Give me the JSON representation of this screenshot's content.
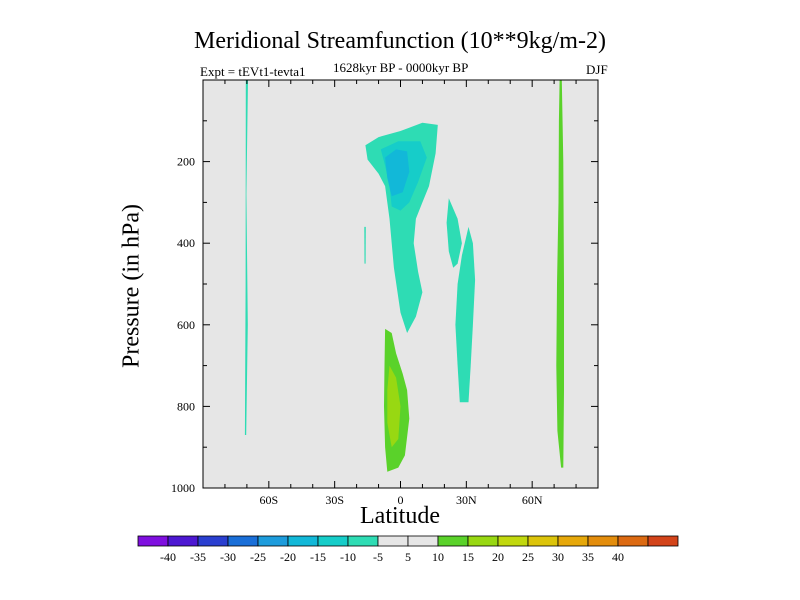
{
  "chart_data": {
    "type": "heatmap",
    "title": "Meridional Streamfunction (10**9kg/m-2)",
    "left_subtitle": "Expt = tEVt1-tevta1",
    "center_subtitle": "1628kyr BP - 0000kyr BP",
    "right_subtitle": "DJF",
    "xlabel": "Latitude",
    "ylabel": "Pressure (in hPa)",
    "xlim": [
      -90,
      90
    ],
    "ylim": [
      1000,
      0
    ],
    "x_ticks": [
      {
        "value": -60,
        "label": "60S"
      },
      {
        "value": -30,
        "label": "30S"
      },
      {
        "value": 0,
        "label": "0"
      },
      {
        "value": 30,
        "label": "30N"
      },
      {
        "value": 60,
        "label": "60N"
      }
    ],
    "y_ticks": [
      {
        "value": 200,
        "label": "200"
      },
      {
        "value": 400,
        "label": "400"
      },
      {
        "value": 600,
        "label": "600"
      },
      {
        "value": 800,
        "label": "800"
      },
      {
        "value": 1000,
        "label": "1000"
      }
    ],
    "background_color": "#e6e6e6",
    "colorbar": {
      "colors": [
        "#7f0fdf",
        "#4d18d2",
        "#2a3fd0",
        "#1a6fd8",
        "#1d9cdc",
        "#12b8d8",
        "#16cdc9",
        "#2edcb4",
        "#e6e6e6",
        "#e6e6e6",
        "#5ad22a",
        "#98d812",
        "#c1d80e",
        "#dcc40a",
        "#e6a80a",
        "#e38d0c",
        "#dc6a12",
        "#d3441a"
      ],
      "labels": [
        "-40",
        "-35",
        "-30",
        "-25",
        "-20",
        "-15",
        "-10",
        "-5",
        "5",
        "10",
        "15",
        "20",
        "25",
        "30",
        "35",
        "40"
      ]
    },
    "regions": [
      {
        "level": -5,
        "color": "#2edcb4",
        "points": [
          [
            -70.5,
            0
          ],
          [
            -69.5,
            0
          ],
          [
            -70.2,
            280
          ],
          [
            -69.6,
            600
          ],
          [
            -70.3,
            870
          ],
          [
            -70.9,
            870
          ],
          [
            -70.6,
            500
          ]
        ]
      },
      {
        "level": -5,
        "color": "#2edcb4",
        "points": [
          [
            -16,
            160
          ],
          [
            -10,
            140
          ],
          [
            0,
            125
          ],
          [
            10,
            105
          ],
          [
            17,
            110
          ],
          [
            16,
            180
          ],
          [
            13,
            260
          ],
          [
            10,
            300
          ],
          [
            7,
            340
          ],
          [
            6,
            400
          ],
          [
            8,
            470
          ],
          [
            10,
            520
          ],
          [
            7,
            580
          ],
          [
            3,
            620
          ],
          [
            0,
            570
          ],
          [
            -3,
            460
          ],
          [
            -5,
            340
          ],
          [
            -7,
            260
          ],
          [
            -10,
            230
          ],
          [
            -15,
            195
          ]
        ]
      },
      {
        "level": -10,
        "color": "#16cdc9",
        "points": [
          [
            -9,
            170
          ],
          [
            -1,
            150
          ],
          [
            9,
            150
          ],
          [
            12,
            190
          ],
          [
            8,
            250
          ],
          [
            4,
            300
          ],
          [
            0,
            320
          ],
          [
            -4,
            310
          ],
          [
            -5,
            260
          ],
          [
            -7,
            210
          ]
        ]
      },
      {
        "level": -15,
        "color": "#12b8d8",
        "points": [
          [
            -7,
            190
          ],
          [
            -2,
            170
          ],
          [
            3,
            175
          ],
          [
            4,
            225
          ],
          [
            1,
            275
          ],
          [
            -4,
            285
          ],
          [
            -6,
            240
          ]
        ]
      },
      {
        "level": -5,
        "color": "#2edcb4",
        "points": [
          [
            22,
            290
          ],
          [
            26,
            340
          ],
          [
            28,
            400
          ],
          [
            26,
            450
          ],
          [
            24,
            460
          ],
          [
            22,
            420
          ],
          [
            21,
            350
          ]
        ]
      },
      {
        "level": -5,
        "color": "#2edcb4",
        "points": [
          [
            31,
            360
          ],
          [
            33,
            400
          ],
          [
            34,
            490
          ],
          [
            33,
            600
          ],
          [
            32,
            700
          ],
          [
            31,
            790
          ],
          [
            27,
            790
          ],
          [
            26,
            700
          ],
          [
            25,
            600
          ],
          [
            26,
            500
          ],
          [
            28,
            430
          ]
        ]
      },
      {
        "level": -5,
        "color": "#2edcb4",
        "points": [
          [
            -16.5,
            360
          ],
          [
            -15.8,
            360
          ],
          [
            -15.9,
            450
          ],
          [
            -16.4,
            450
          ]
        ]
      },
      {
        "level": 5,
        "color": "#5ad22a",
        "points": [
          [
            -7,
            610
          ],
          [
            -4,
            620
          ],
          [
            -2,
            670
          ],
          [
            1,
            720
          ],
          [
            3,
            760
          ],
          [
            4,
            830
          ],
          [
            2,
            920
          ],
          [
            -1,
            950
          ],
          [
            -6,
            960
          ],
          [
            -7,
            900
          ],
          [
            -7.5,
            800
          ],
          [
            -7.3,
            700
          ]
        ]
      },
      {
        "level": 10,
        "color": "#98d812",
        "points": [
          [
            -5,
            700
          ],
          [
            -2,
            730
          ],
          [
            0,
            800
          ],
          [
            -1,
            880
          ],
          [
            -4,
            900
          ],
          [
            -6,
            840
          ],
          [
            -6,
            760
          ]
        ]
      },
      {
        "level": 5,
        "color": "#5ad22a",
        "points": [
          [
            72.5,
            0
          ],
          [
            73.5,
            0
          ],
          [
            74.2,
            200
          ],
          [
            74.5,
            500
          ],
          [
            74.5,
            760
          ],
          [
            74.2,
            950
          ],
          [
            73.2,
            950
          ],
          [
            71.5,
            860
          ],
          [
            71,
            700
          ],
          [
            71.3,
            500
          ],
          [
            72,
            300
          ],
          [
            72.2,
            100
          ]
        ]
      }
    ]
  }
}
